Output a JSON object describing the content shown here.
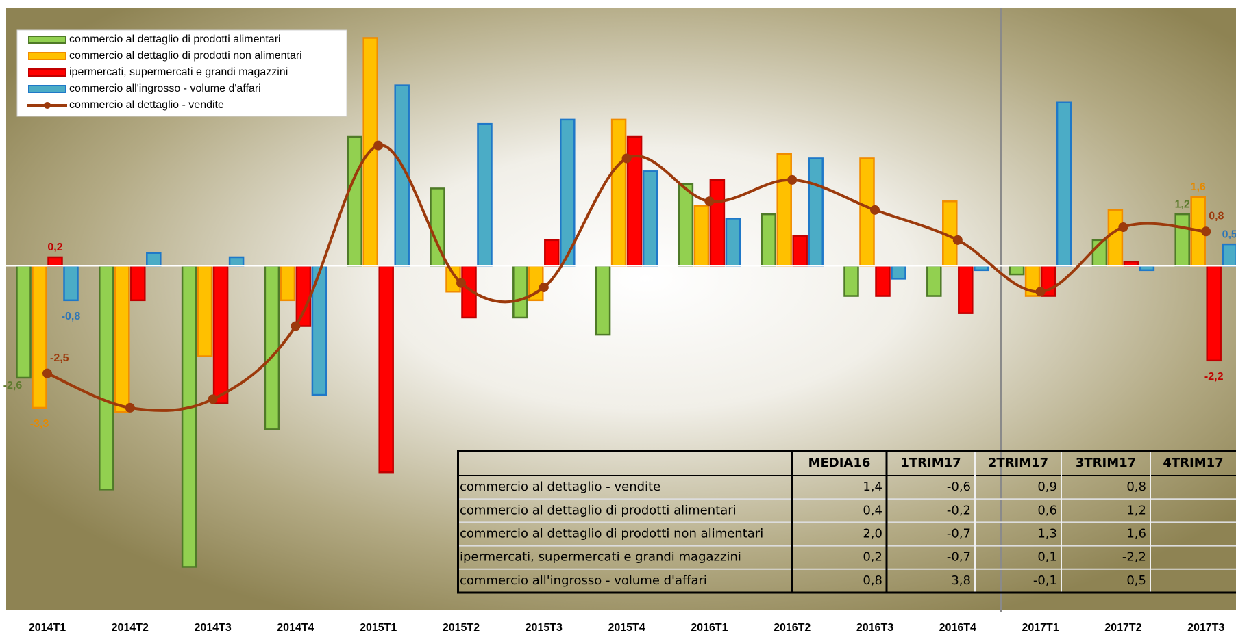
{
  "chart_data": {
    "type": "bar",
    "categories": [
      "2014T1",
      "2014T2",
      "2014T3",
      "2014T4",
      "2015T1",
      "2015T2",
      "2015T3",
      "2015T4",
      "2016T1",
      "2016T2",
      "2016T3",
      "2016T4",
      "2017T1",
      "2017T2",
      "2017T3"
    ],
    "ylim": [
      -7.9,
      6.0
    ],
    "legend": "upper left",
    "series": [
      {
        "name": "commercio al dettaglio di prodotti alimentari",
        "type": "bar",
        "color": "#92d050",
        "stroke": "#4f7a28",
        "label_color": "#5e7b2e",
        "values": [
          -2.6,
          -5.2,
          -7.0,
          -3.8,
          3.0,
          1.8,
          -1.2,
          -1.6,
          1.9,
          1.2,
          -0.7,
          -0.7,
          -0.2,
          0.6,
          1.2
        ],
        "value_labels": [
          "-2,6",
          null,
          null,
          null,
          null,
          null,
          null,
          null,
          null,
          null,
          null,
          null,
          null,
          null,
          "1,2"
        ]
      },
      {
        "name": "commercio al dettaglio di prodotti non alimentari",
        "type": "bar",
        "color": "#ffc000",
        "stroke": "#f08c00",
        "label_color": "#e68a00",
        "values": [
          -3.3,
          -3.4,
          -2.1,
          -0.8,
          5.3,
          -0.6,
          -0.8,
          3.4,
          1.4,
          2.6,
          2.5,
          1.5,
          -0.7,
          1.3,
          1.6
        ],
        "value_labels": [
          "-3,3",
          null,
          null,
          null,
          null,
          null,
          null,
          null,
          null,
          null,
          null,
          null,
          null,
          null,
          "1,6"
        ]
      },
      {
        "name": "ipermercati, supermercati e grandi magazzini",
        "type": "bar",
        "color": "#ff0000",
        "stroke": "#c00000",
        "label_color": "#c00000",
        "values": [
          0.2,
          -0.8,
          -3.2,
          -1.4,
          -4.8,
          -1.2,
          0.6,
          3.0,
          2.0,
          0.7,
          -0.7,
          -1.1,
          -0.7,
          0.1,
          -2.2
        ],
        "value_labels": [
          "0,2",
          null,
          null,
          null,
          null,
          null,
          null,
          null,
          null,
          null,
          null,
          null,
          null,
          null,
          "-2,2"
        ]
      },
      {
        "name": "commercio all'ingrosso - volume d'affari",
        "type": "bar",
        "color": "#4bacc6",
        "stroke": "#1f78c8",
        "label_color": "#2e75b6",
        "values": [
          -0.8,
          0.3,
          0.2,
          -3.0,
          4.2,
          3.3,
          3.4,
          2.2,
          1.1,
          2.5,
          -0.3,
          -0.1,
          3.8,
          -0.1,
          0.5
        ],
        "value_labels": [
          "-0,8",
          null,
          null,
          null,
          null,
          null,
          null,
          null,
          null,
          null,
          null,
          null,
          null,
          null,
          "0,5"
        ]
      },
      {
        "name": "commercio al dettaglio - vendite",
        "type": "line",
        "color": "#9c3a0c",
        "label_color": "#9c3a0c",
        "values": [
          -2.5,
          -3.3,
          -3.1,
          -1.4,
          2.8,
          -0.4,
          -0.5,
          2.5,
          1.5,
          2.0,
          1.3,
          0.6,
          -0.6,
          0.9,
          0.8
        ],
        "value_labels": [
          "-2,5",
          null,
          null,
          null,
          null,
          null,
          null,
          null,
          null,
          null,
          null,
          null,
          null,
          null,
          "0,8"
        ]
      }
    ]
  },
  "table": {
    "header": [
      "MEDIA16",
      "1TRIM17",
      "2TRIM17",
      "3TRIM17",
      "4TRIM17"
    ],
    "rows": [
      {
        "label": "commercio al dettaglio - vendite",
        "values": [
          "1,4",
          "-0,6",
          "0,9",
          "0,8"
        ]
      },
      {
        "label": "commercio al dettaglio di prodotti alimentari",
        "values": [
          "0,4",
          "-0,2",
          "0,6",
          "1,2"
        ]
      },
      {
        "label": "commercio al dettaglio di prodotti non alimentari",
        "values": [
          "2,0",
          "-0,7",
          "1,3",
          "1,6"
        ]
      },
      {
        "label": "ipermercati, supermercati e grandi magazzini",
        "values": [
          "0,2",
          "-0,7",
          "0,1",
          "-2,2"
        ]
      },
      {
        "label": "commercio all'ingrosso - volume d'affari",
        "values": [
          "0,8",
          "3,8",
          "-0,1",
          "0,5"
        ]
      }
    ]
  }
}
